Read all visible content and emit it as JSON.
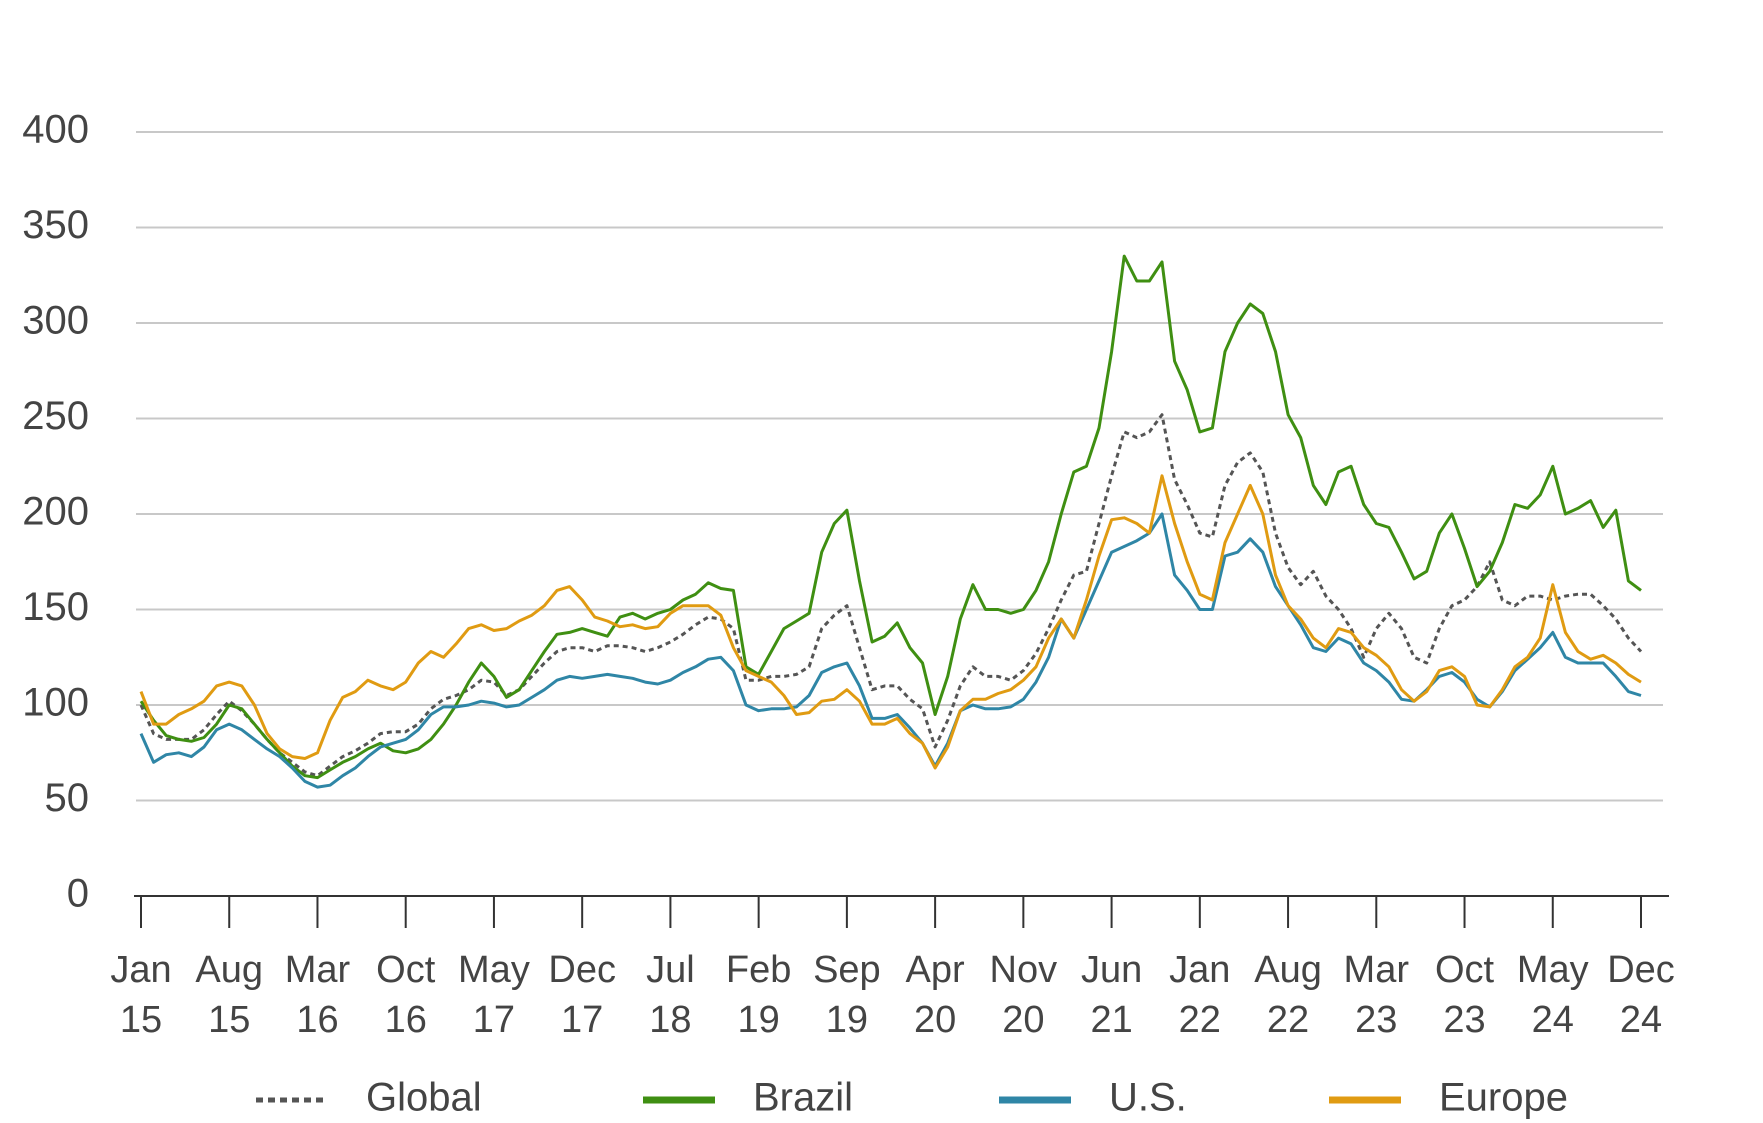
{
  "chart_data": {
    "type": "line",
    "categories": [
      "Jan 15",
      null,
      null,
      null,
      null,
      null,
      null,
      "Aug 15",
      null,
      null,
      null,
      null,
      null,
      null,
      "Mar 16",
      null,
      null,
      null,
      null,
      null,
      null,
      "Oct 16",
      null,
      null,
      null,
      null,
      null,
      null,
      "May 17",
      null,
      null,
      null,
      null,
      null,
      null,
      "Dec 17",
      null,
      null,
      null,
      null,
      null,
      null,
      "Jul 18",
      null,
      null,
      null,
      null,
      null,
      null,
      "Feb 19",
      null,
      null,
      null,
      null,
      null,
      null,
      "Sep 19",
      null,
      null,
      null,
      null,
      null,
      null,
      "Apr 20",
      null,
      null,
      null,
      null,
      null,
      null,
      "Nov 20",
      null,
      null,
      null,
      null,
      null,
      null,
      "Jun 21",
      null,
      null,
      null,
      null,
      null,
      null,
      "Jan 22",
      null,
      null,
      null,
      null,
      null,
      null,
      "Aug 22",
      null,
      null,
      null,
      null,
      null,
      null,
      "Mar 23",
      null,
      null,
      null,
      null,
      null,
      null,
      "Oct 23",
      null,
      null,
      null,
      null,
      null,
      null,
      "May 24",
      null,
      null,
      null,
      null,
      null,
      null,
      "Dec 24"
    ],
    "series": [
      {
        "name": "Global",
        "color": "#555555",
        "style": "dotted",
        "values": [
          100,
          85,
          82,
          82,
          82,
          87,
          95,
          102,
          97,
          90,
          82,
          75,
          70,
          65,
          63,
          68,
          73,
          76,
          80,
          85,
          86,
          86,
          90,
          98,
          103,
          105,
          108,
          113,
          112,
          105,
          108,
          115,
          122,
          128,
          130,
          130,
          128,
          131,
          131,
          130,
          128,
          130,
          133,
          137,
          142,
          146,
          145,
          140,
          113,
          113,
          115,
          115,
          116,
          120,
          140,
          147,
          152,
          130,
          108,
          110,
          110,
          103,
          98,
          78,
          92,
          110,
          120,
          115,
          115,
          113,
          118,
          127,
          140,
          155,
          168,
          170,
          195,
          220,
          243,
          240,
          243,
          252,
          218,
          205,
          190,
          188,
          215,
          227,
          232,
          222,
          190,
          172,
          163,
          170,
          157,
          150,
          140,
          125,
          140,
          148,
          140,
          125,
          122,
          140,
          152,
          155,
          162,
          175,
          155,
          152,
          157,
          157,
          155,
          157,
          158,
          158,
          152,
          145,
          135,
          128
        ]
      },
      {
        "name": "Brazil",
        "color": "#3f8f12",
        "style": "solid",
        "values": [
          102,
          92,
          84,
          82,
          81,
          83,
          90,
          100,
          98,
          90,
          82,
          75,
          68,
          63,
          62,
          66,
          70,
          73,
          77,
          80,
          76,
          75,
          77,
          82,
          90,
          100,
          112,
          122,
          115,
          104,
          108,
          118,
          128,
          137,
          138,
          140,
          138,
          136,
          146,
          148,
          145,
          148,
          150,
          155,
          158,
          164,
          161,
          160,
          120,
          116,
          128,
          140,
          144,
          148,
          180,
          195,
          202,
          165,
          133,
          136,
          143,
          130,
          122,
          95,
          115,
          145,
          163,
          150,
          150,
          148,
          150,
          160,
          175,
          200,
          222,
          225,
          245,
          285,
          335,
          322,
          322,
          332,
          280,
          265,
          243,
          245,
          285,
          300,
          310,
          305,
          285,
          252,
          240,
          215,
          205,
          222,
          225,
          205,
          195,
          193,
          180,
          166,
          170,
          190,
          200,
          182,
          162,
          170,
          185,
          205,
          203,
          210,
          225,
          200,
          203,
          207,
          193,
          202,
          165,
          160
        ]
      },
      {
        "name": "U.S.",
        "color": "#2f86a6",
        "style": "solid",
        "values": [
          85,
          70,
          74,
          75,
          73,
          78,
          87,
          90,
          87,
          82,
          77,
          73,
          67,
          60,
          57,
          58,
          63,
          67,
          73,
          78,
          80,
          82,
          87,
          95,
          99,
          99,
          100,
          102,
          101,
          99,
          100,
          104,
          108,
          113,
          115,
          114,
          115,
          116,
          115,
          114,
          112,
          111,
          113,
          117,
          120,
          124,
          125,
          118,
          100,
          97,
          98,
          98,
          99,
          105,
          117,
          120,
          122,
          110,
          93,
          93,
          95,
          88,
          80,
          68,
          80,
          97,
          100,
          98,
          98,
          99,
          103,
          112,
          125,
          145,
          135,
          150,
          165,
          180,
          183,
          186,
          190,
          200,
          168,
          160,
          150,
          150,
          178,
          180,
          187,
          180,
          162,
          152,
          142,
          130,
          128,
          135,
          132,
          122,
          118,
          112,
          103,
          102,
          108,
          115,
          117,
          112,
          103,
          99,
          107,
          118,
          124,
          130,
          138,
          125,
          122,
          122,
          122,
          115,
          107,
          105
        ]
      },
      {
        "name": "Europe",
        "color": "#e09b12",
        "style": "solid",
        "values": [
          107,
          90,
          90,
          95,
          98,
          102,
          110,
          112,
          110,
          100,
          85,
          77,
          73,
          72,
          75,
          92,
          104,
          107,
          113,
          110,
          108,
          112,
          122,
          128,
          125,
          132,
          140,
          142,
          139,
          140,
          144,
          147,
          152,
          160,
          162,
          155,
          146,
          144,
          141,
          142,
          140,
          141,
          148,
          152,
          152,
          152,
          147,
          130,
          118,
          115,
          112,
          105,
          95,
          96,
          102,
          103,
          108,
          102,
          90,
          90,
          93,
          85,
          80,
          67,
          78,
          97,
          103,
          103,
          106,
          108,
          113,
          120,
          135,
          145,
          135,
          155,
          178,
          197,
          198,
          195,
          190,
          220,
          195,
          175,
          158,
          155,
          185,
          200,
          215,
          200,
          168,
          152,
          145,
          135,
          130,
          140,
          138,
          130,
          126,
          120,
          108,
          102,
          107,
          118,
          120,
          115,
          100,
          99,
          108,
          120,
          125,
          135,
          163,
          138,
          128,
          124,
          126,
          122,
          116,
          112
        ]
      }
    ],
    "ylim": [
      0,
      400
    ],
    "yticks": [
      0,
      50,
      100,
      150,
      200,
      250,
      300,
      350,
      400
    ],
    "grid": true,
    "legend": "bottom"
  }
}
